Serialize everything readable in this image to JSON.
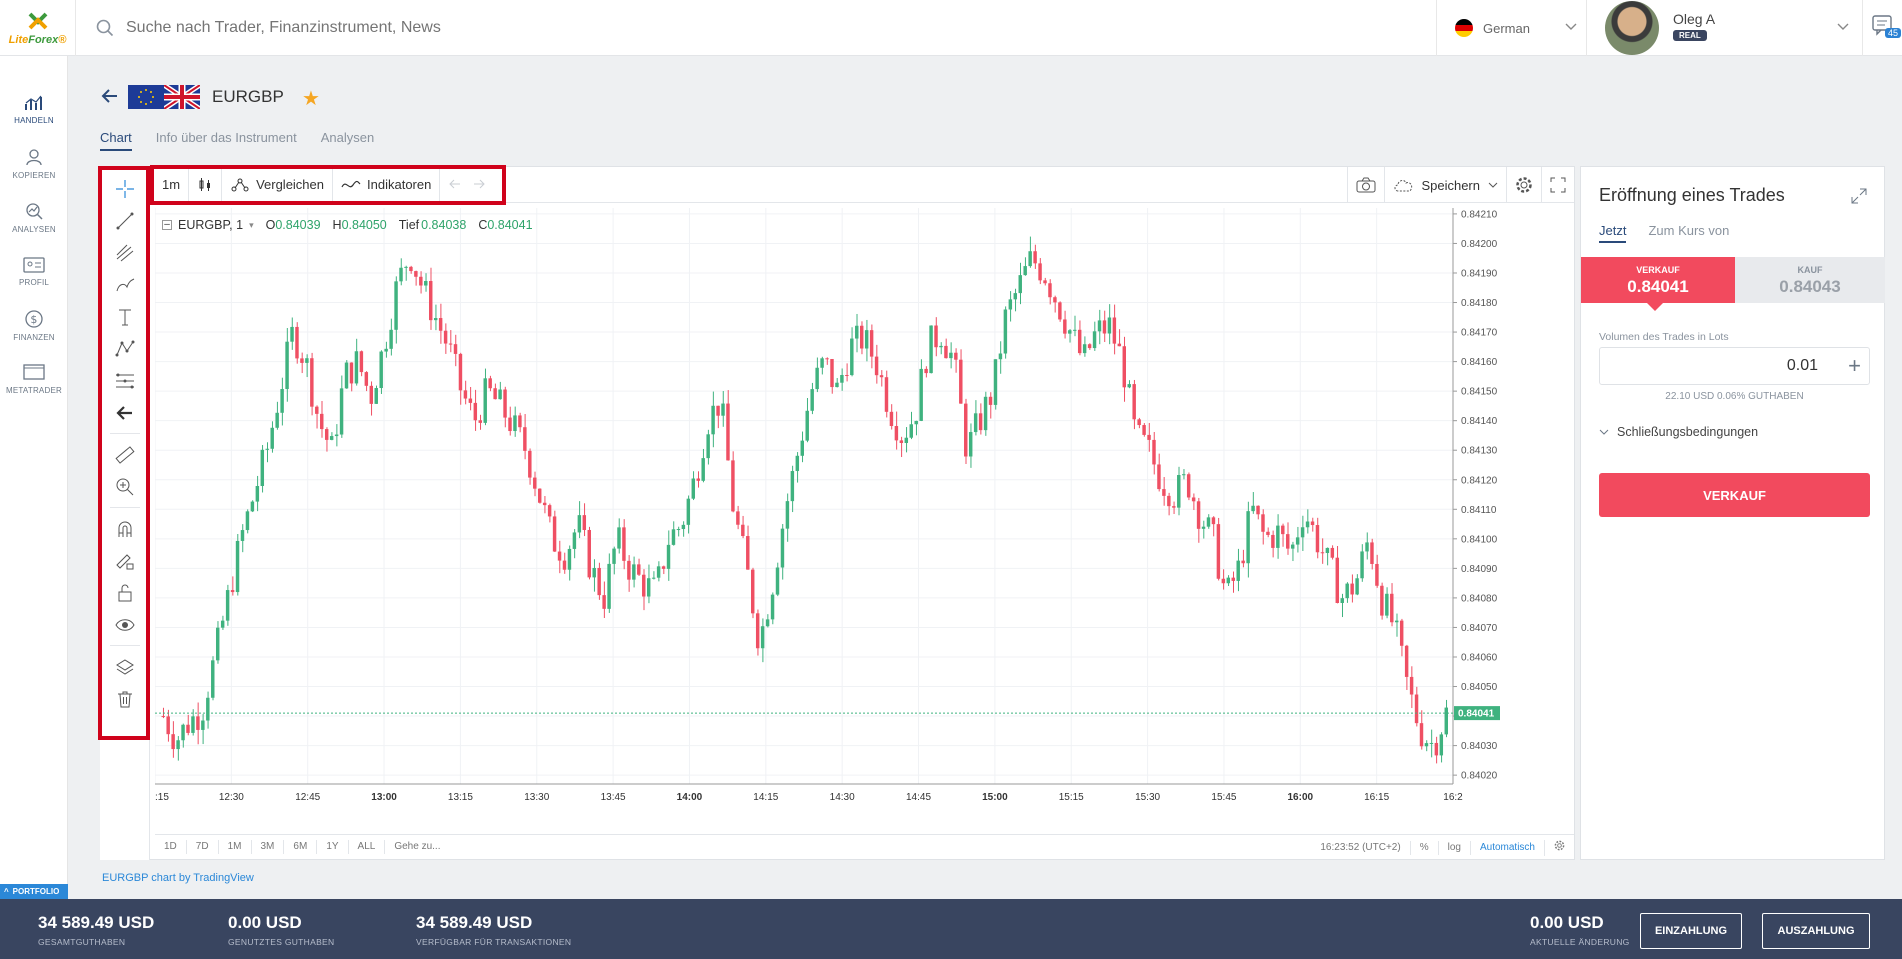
{
  "app": {
    "logo_a": "Lite",
    "logo_b": "Forex",
    "logo_reg": "®"
  },
  "search": {
    "placeholder": "Suche nach Trader, Finanzinstrument, News"
  },
  "language": {
    "label": "German"
  },
  "user": {
    "name": "Oleg A",
    "badge": "REAL"
  },
  "messages": {
    "count": "45"
  },
  "nav": {
    "items": [
      {
        "label": "HANDELN",
        "icon": "chart-icon"
      },
      {
        "label": "KOPIEREN",
        "icon": "person-icon"
      },
      {
        "label": "ANALYSEN",
        "icon": "analysis-icon"
      },
      {
        "label": "PROFIL",
        "icon": "id-card-icon"
      },
      {
        "label": "FINANZEN",
        "icon": "dollar-icon"
      },
      {
        "label": "METATRADER",
        "icon": "monitor-icon"
      }
    ],
    "portfolio": "PORTFOLIO"
  },
  "instrument": {
    "symbol": "EURGBP"
  },
  "tabs": [
    "Chart",
    "Info über das Instrument",
    "Analysen"
  ],
  "toolbar": {
    "interval": "1m",
    "compare": "Vergleichen",
    "indicators": "Indikatoren",
    "save": "Speichern"
  },
  "legend": {
    "symbol": "EURGBP, 1",
    "o_label": "O",
    "o": "0.84039",
    "h_label": "H",
    "h": "0.84050",
    "l_label": "Tief",
    "l": "0.84038",
    "c_label": "C",
    "c": "0.84041"
  },
  "bottom_bar": {
    "ranges": [
      "1D",
      "7D",
      "1M",
      "3M",
      "6M",
      "1Y",
      "ALL"
    ],
    "goto": "Gehe zu...",
    "time": "16:23:52 (UTC+2)",
    "percent": "%",
    "log": "log",
    "auto": "Automatisch"
  },
  "credit": "EURGBP chart by TradingView",
  "chart_data": {
    "type": "candlestick",
    "x_ticks": [
      ":15",
      "12:30",
      "12:45",
      "13:00",
      "13:15",
      "13:30",
      "13:45",
      "14:00",
      "14:15",
      "14:30",
      "14:45",
      "15:00",
      "15:15",
      "15:30",
      "15:45",
      "16:00",
      "16:15",
      "16:2"
    ],
    "y_ticks": [
      "0.84210",
      "0.84200",
      "0.84190",
      "0.84180",
      "0.84170",
      "0.84160",
      "0.84150",
      "0.84140",
      "0.84130",
      "0.84120",
      "0.84110",
      "0.84100",
      "0.84090",
      "0.84080",
      "0.84070",
      "0.84060",
      "0.84050",
      "0.84040",
      "0.84030",
      "0.84020"
    ],
    "ylim": [
      0.84017,
      0.84212
    ],
    "last_price": "0.84041",
    "up_color": "#26a69a",
    "down_color": "#ef5350",
    "close_path": [
      0.8404,
      0.84032,
      0.84038,
      0.84042,
      0.8406,
      0.8408,
      0.841,
      0.84115,
      0.8413,
      0.8415,
      0.8417,
      0.8416,
      0.8414,
      0.8413,
      0.84155,
      0.8416,
      0.84148,
      0.84165,
      0.84185,
      0.84197,
      0.84185,
      0.84175,
      0.84165,
      0.8415,
      0.8414,
      0.8415,
      0.84145,
      0.84138,
      0.8413,
      0.84115,
      0.841,
      0.84095,
      0.84105,
      0.8409,
      0.8408,
      0.841,
      0.8409,
      0.84085,
      0.84082,
      0.841,
      0.84105,
      0.8412,
      0.8414,
      0.84147,
      0.8411,
      0.8409,
      0.84065,
      0.84085,
      0.8411,
      0.8413,
      0.8415,
      0.8416,
      0.8415,
      0.84165,
      0.84168,
      0.8416,
      0.84145,
      0.84135,
      0.84142,
      0.84165,
      0.8417,
      0.8416,
      0.8413,
      0.8414,
      0.8415,
      0.84175,
      0.84185,
      0.84195,
      0.8419,
      0.8418,
      0.8417,
      0.8416,
      0.8417,
      0.84172,
      0.8416,
      0.84135,
      0.8413,
      0.8412,
      0.84115,
      0.8412,
      0.84108,
      0.841,
      0.8408,
      0.8409,
      0.8411,
      0.841,
      0.84102,
      0.84095,
      0.8411,
      0.841,
      0.8409,
      0.8408,
      0.84085,
      0.841,
      0.8408,
      0.8407,
      0.8405,
      0.84035,
      0.8403,
      0.84041
    ]
  },
  "trade": {
    "title": "Eröffnung eines Trades",
    "tab_now": "Jetzt",
    "tab_rate": "Zum Kurs von",
    "sell_label": "VERKAUF",
    "sell_price": "0.84041",
    "buy_label": "KAUF",
    "buy_price": "0.84043",
    "volume_label": "Volumen des Trades in Lots",
    "volume_value": "0.01",
    "margin_info": "22.10 USD  0.06% GUTHABEN",
    "close_conditions": "Schließungsbedingungen",
    "sell_button": "VERKAUF"
  },
  "footer": {
    "total_value": "34 589.49 USD",
    "total_label": "GESAMTGUTHABEN",
    "used_value": "0.00 USD",
    "used_label": "GENUTZTES GUTHABEN",
    "avail_value": "34 589.49 USD",
    "avail_label": "VERFÜGBAR FÜR TRANSAKTIONEN",
    "change_value": "0.00 USD",
    "change_label": "AKTUELLE ÄNDERUNG",
    "deposit": "EINZAHLUNG",
    "withdraw": "AUSZAHLUNG"
  }
}
